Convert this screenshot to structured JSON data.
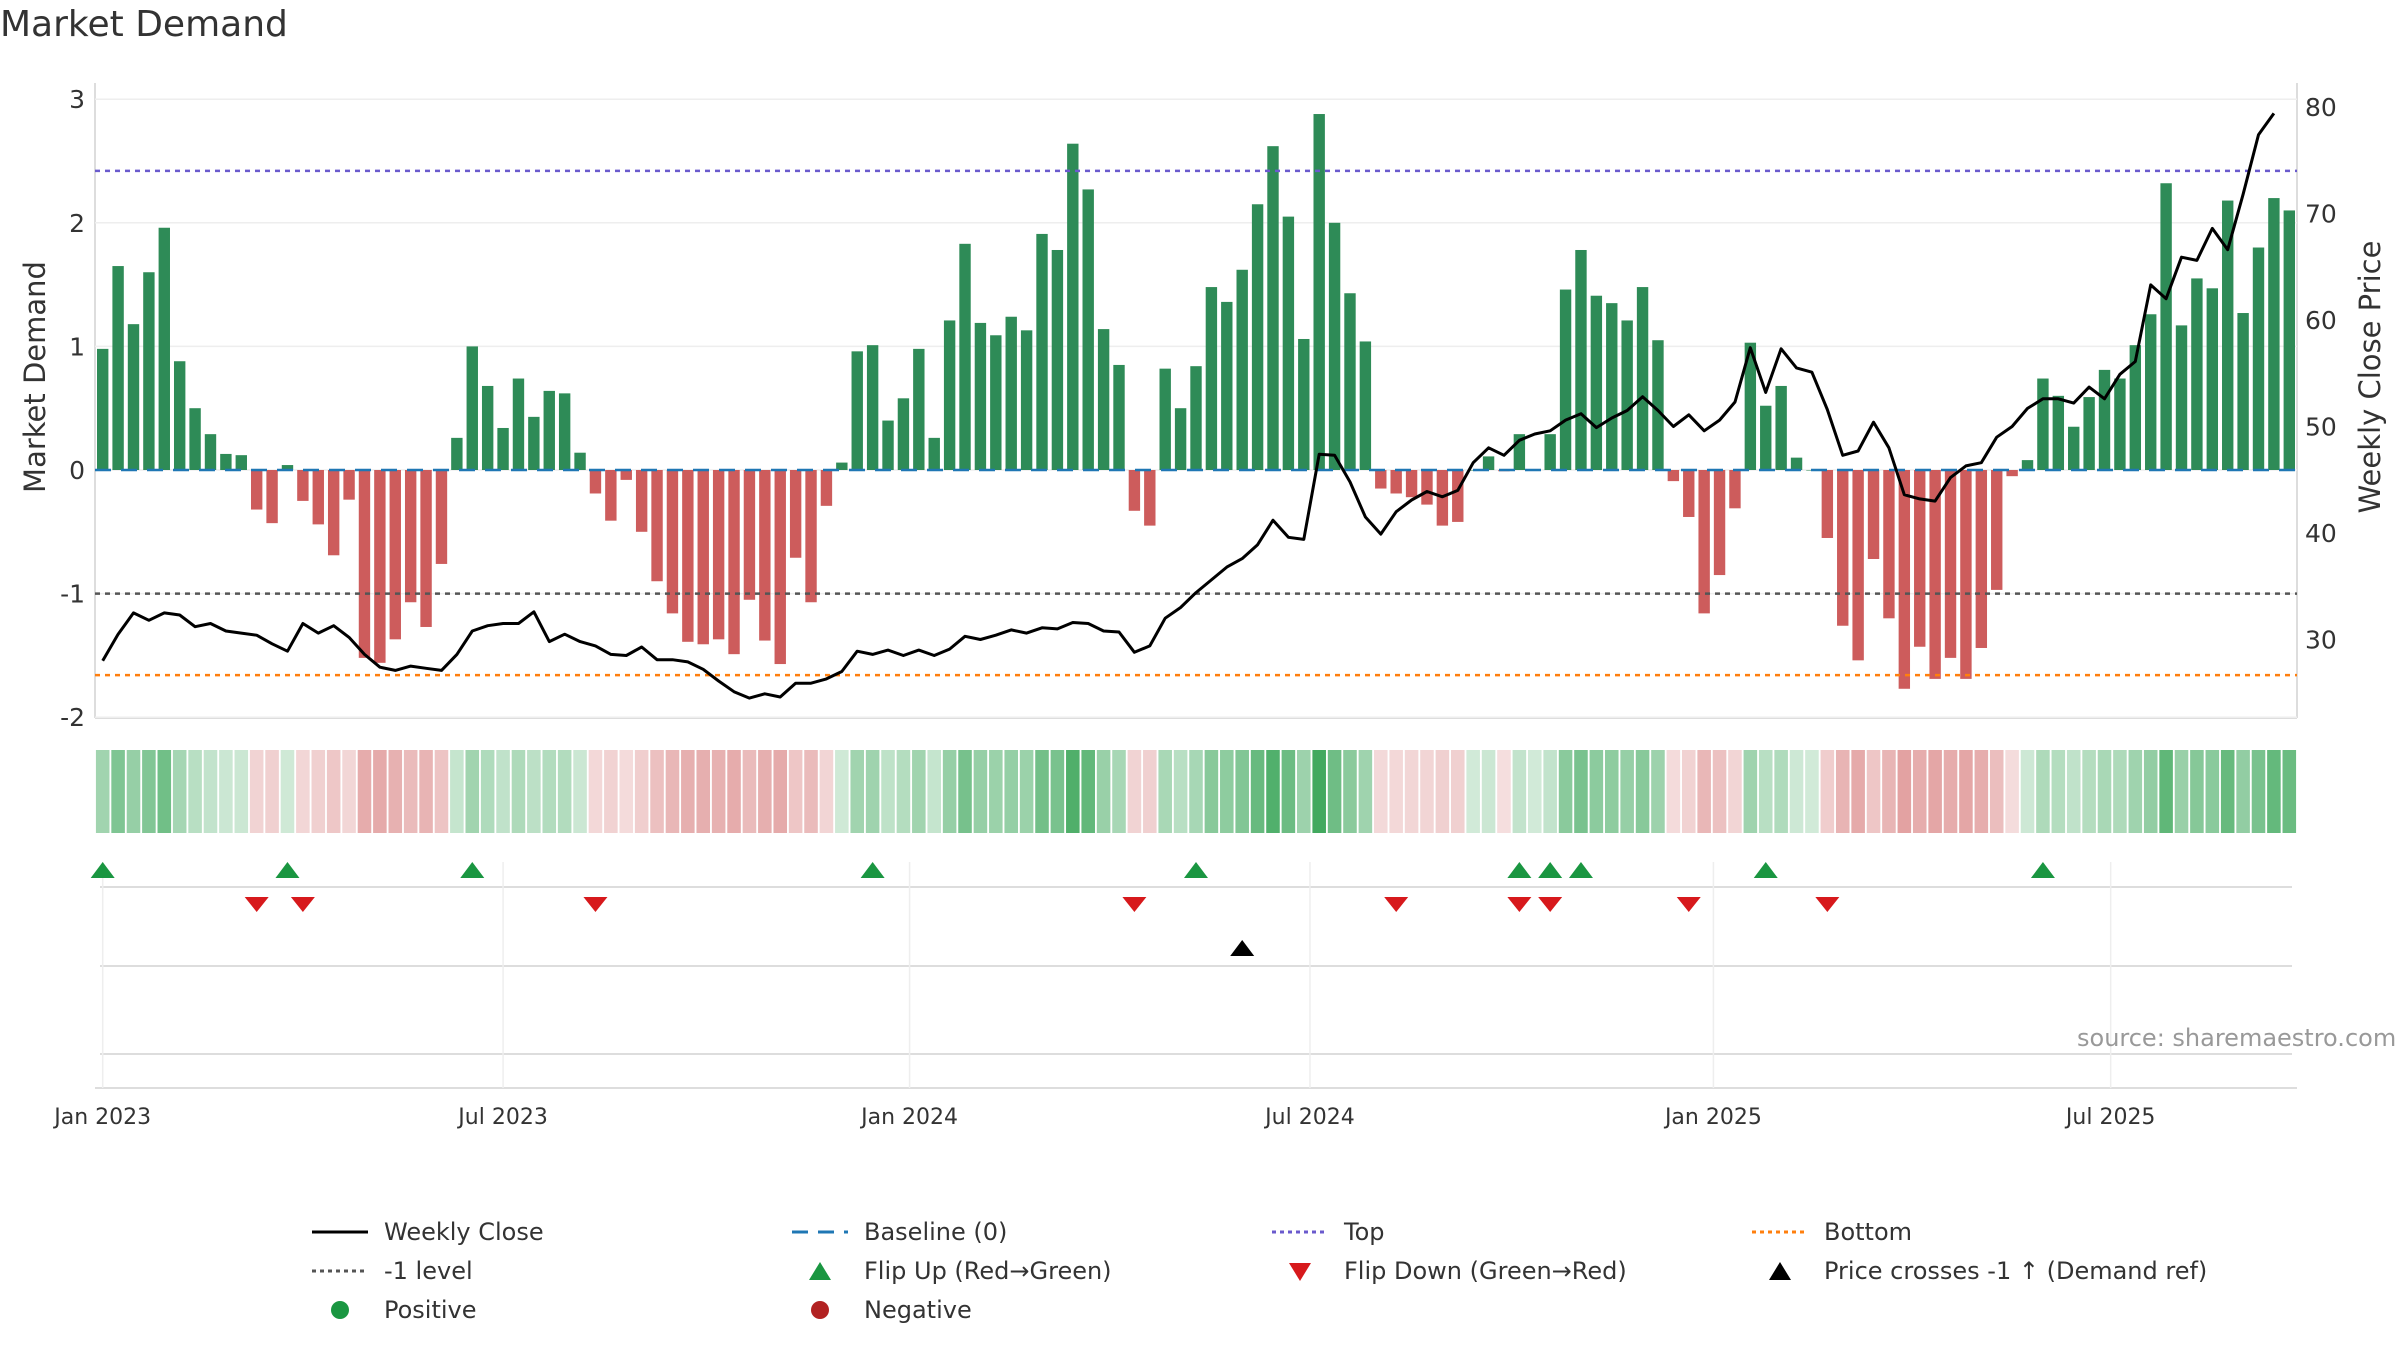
{
  "title": "Market Demand",
  "source": "source: sharemaestro.com",
  "colors": {
    "positive_bar": "#2e8b57",
    "negative_bar": "#cd5c5c",
    "line": "#000000",
    "baseline": "#1f77b4",
    "top": "#6a5acd",
    "bottom": "#ff7f0e",
    "minus1": "#555555",
    "flip_up": "#1a9641",
    "flip_down": "#d7191c",
    "cross": "#000000"
  },
  "chart_data": {
    "type": "bar",
    "title": "Market Demand",
    "ylabel": "Market Demand",
    "y2label": "Weekly Close Price",
    "ylim": [
      -2,
      3
    ],
    "y2lim": [
      24,
      80
    ],
    "yticks": [
      "3",
      "2",
      "1",
      "0",
      "-1",
      "-2"
    ],
    "y2ticks": [
      "80",
      "70",
      "60",
      "50",
      "40",
      "30"
    ],
    "xticks": [
      "Jan 2023",
      "Jul 2023",
      "Jan 2024",
      "Jul 2024",
      "Jan 2025",
      "Jul 2025"
    ],
    "reference_lines": {
      "top": 2.42,
      "bottom": -1.66,
      "minus1": -1,
      "baseline": 0
    },
    "series": [
      {
        "name": "Market Demand",
        "type": "bar",
        "values": [
          0.98,
          1.65,
          1.18,
          1.6,
          1.96,
          0.88,
          0.5,
          0.29,
          0.13,
          0.12,
          -0.32,
          -0.43,
          0.04,
          -0.25,
          -0.44,
          -0.69,
          -0.24,
          -1.52,
          -1.56,
          -1.37,
          -1.07,
          -1.27,
          -0.76,
          0.26,
          1.0,
          0.68,
          0.34,
          0.74,
          0.43,
          0.64,
          0.62,
          0.14,
          -0.19,
          -0.41,
          -0.08,
          -0.5,
          -0.9,
          -1.16,
          -1.39,
          -1.41,
          -1.37,
          -1.49,
          -1.05,
          -1.38,
          -1.57,
          -0.71,
          -1.07,
          -0.29,
          0.06,
          0.96,
          1.01,
          0.4,
          0.58,
          0.98,
          0.26,
          1.21,
          1.83,
          1.19,
          1.09,
          1.24,
          1.13,
          1.91,
          1.78,
          2.64,
          2.27,
          1.14,
          0.85,
          -0.33,
          -0.45,
          0.82,
          0.5,
          0.84,
          1.48,
          1.36,
          1.62,
          2.15,
          2.62,
          2.05,
          1.06,
          2.88,
          2.0,
          1.43,
          1.04,
          -0.15,
          -0.19,
          -0.22,
          -0.28,
          -0.45,
          -0.42,
          0.0,
          0.11,
          -0.01,
          0.29,
          0.0,
          0.29,
          1.46,
          1.78,
          1.41,
          1.35,
          1.21,
          1.48,
          1.05,
          -0.09,
          -0.38,
          -1.16,
          -0.85,
          -0.31,
          1.03,
          0.52,
          0.68,
          0.1,
          0.0,
          -0.55,
          -1.26,
          -1.54,
          -0.72,
          -1.2,
          -1.77,
          -1.43,
          -1.69,
          -1.52,
          -1.69,
          -1.44,
          -0.97,
          -0.05,
          0.08,
          0.74,
          0.6,
          0.35,
          0.59,
          0.81,
          0.74,
          1.01,
          1.26,
          2.32,
          1.17,
          1.55,
          1.47,
          2.18,
          1.27,
          1.8,
          2.2,
          2.1
        ]
      },
      {
        "name": "Weekly Close",
        "type": "line",
        "values": [
          28.0,
          30.5,
          32.5,
          31.8,
          32.5,
          32.3,
          31.2,
          31.5,
          30.8,
          30.6,
          30.4,
          29.6,
          28.9,
          31.5,
          30.6,
          31.3,
          30.2,
          28.6,
          27.4,
          27.1,
          27.5,
          27.3,
          27.1,
          28.6,
          30.8,
          31.3,
          31.5,
          31.5,
          32.6,
          29.8,
          30.5,
          29.8,
          29.4,
          28.6,
          28.5,
          29.3,
          28.1,
          28.1,
          27.9,
          27.2,
          26.1,
          25.1,
          24.5,
          24.9,
          24.6,
          25.9,
          25.9,
          26.3,
          27.0,
          28.9,
          28.6,
          29.0,
          28.5,
          29.0,
          28.5,
          29.1,
          30.3,
          30.0,
          30.4,
          30.9,
          30.6,
          31.1,
          31.0,
          31.6,
          31.5,
          30.8,
          30.7,
          28.8,
          29.4,
          32.0,
          33.0,
          34.4,
          35.6,
          36.8,
          37.6,
          38.9,
          41.2,
          39.6,
          39.4,
          47.4,
          47.3,
          44.8,
          41.5,
          39.9,
          42.0,
          43.1,
          43.9,
          43.4,
          44.0,
          46.6,
          48.0,
          47.3,
          48.7,
          49.3,
          49.6,
          50.6,
          51.2,
          49.9,
          50.8,
          51.5,
          52.8,
          51.5,
          50.0,
          51.1,
          49.6,
          50.6,
          52.3,
          57.4,
          53.2,
          57.3,
          55.5,
          55.1,
          51.6,
          47.3,
          47.7,
          50.4,
          48.0,
          43.6,
          43.2,
          43.0,
          45.2,
          46.3,
          46.6,
          49.0,
          50.0,
          51.7,
          52.6,
          52.6,
          52.2,
          53.7,
          52.6,
          54.9,
          56.1,
          63.3,
          62.0,
          65.9,
          65.6,
          68.6,
          66.6,
          71.8,
          77.4,
          79.4
        ]
      }
    ],
    "flip_up_weeks": [
      0,
      12,
      24,
      50,
      71,
      92,
      94,
      96,
      108,
      126
    ],
    "flip_down_weeks": [
      10,
      13,
      32,
      67,
      84,
      92,
      94,
      103,
      112
    ],
    "price_cross_weeks": [
      74
    ],
    "legend": [
      "Weekly Close",
      "Baseline (0)",
      "Top",
      "Bottom",
      "-1 level",
      "Flip Up (Red→Green)",
      "Flip Down (Green→Red)",
      "Price crosses -1 ↑ (Demand ref)",
      "Positive",
      "Negative"
    ]
  }
}
